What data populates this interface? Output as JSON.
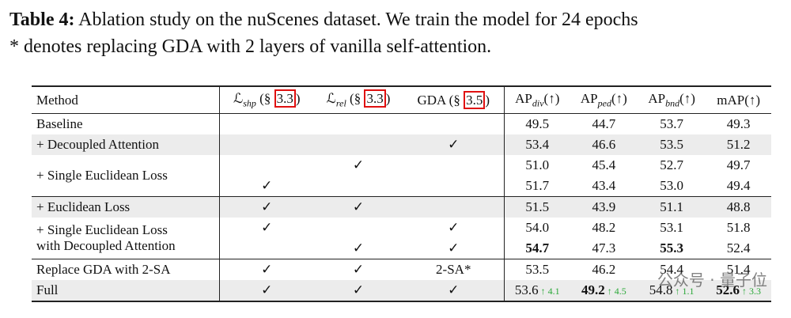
{
  "caption": {
    "label": "Table 4:",
    "lines": [
      "Ablation study on the nuScenes dataset. We train the model for 24 epochs",
      "* denotes replacing GDA with 2 layers of vanilla self-attention."
    ]
  },
  "table": {
    "header": [
      {
        "pre": "Method"
      },
      {
        "pre": "ℒ",
        "sub": "shp",
        "mid": " (§ ",
        "ref": "3.3",
        "post": ")"
      },
      {
        "pre": "ℒ",
        "sub": "rel",
        "mid": " (§ ",
        "ref": "3.3",
        "post": ")"
      },
      {
        "pre": "GDA",
        "mid": " (§ ",
        "ref": "3.5",
        "post": ")"
      },
      {
        "pre": "AP",
        "sub": "div",
        "post": "(↑)"
      },
      {
        "pre": "AP",
        "sub": "ped",
        "post": "(↑)"
      },
      {
        "pre": "AP",
        "sub": "bnd",
        "post": "(↑)"
      },
      {
        "pre": "mAP(↑)"
      }
    ],
    "sections": [
      [
        {
          "method": [
            "Baseline"
          ],
          "entries": [
            {
              "values": [
                "49.5",
                "44.7",
                "53.7",
                "49.3"
              ]
            }
          ]
        },
        {
          "method": [
            "+ Decoupled Attention"
          ],
          "shaded": true,
          "entries": [
            {
              "gda": "✓",
              "values": [
                "53.4",
                "46.6",
                "53.5",
                "51.2"
              ]
            }
          ]
        },
        {
          "method": [
            "+ Single Euclidean Loss"
          ],
          "entries": [
            {
              "rel": "✓",
              "values": [
                "51.0",
                "45.4",
                "52.7",
                "49.7"
              ]
            },
            {
              "shp": "✓",
              "values": [
                "51.7",
                "43.4",
                "53.0",
                "49.4"
              ]
            }
          ]
        }
      ],
      [
        {
          "method": [
            "+ Euclidean Loss"
          ],
          "shaded": true,
          "entries": [
            {
              "shp": "✓",
              "rel": "✓",
              "values": [
                "51.5",
                "43.9",
                "51.1",
                "48.8"
              ]
            }
          ]
        },
        {
          "method": [
            "+ Single Euclidean Loss",
            "with Decoupled Attention"
          ],
          "entries": [
            {
              "shp": "✓",
              "gda": "✓",
              "values": [
                "54.0",
                "48.2",
                "53.1",
                "51.8"
              ]
            },
            {
              "rel": "✓",
              "gda": "✓",
              "values": [
                "54.7",
                "47.3",
                "55.3",
                "52.4"
              ],
              "bold": [
                0,
                2
              ]
            }
          ]
        }
      ],
      [
        {
          "method": [
            "Replace GDA with 2-SA"
          ],
          "entries": [
            {
              "shp": "✓",
              "rel": "✓",
              "gda": "2-SA*",
              "values": [
                "53.5",
                "46.2",
                "54.4",
                "51.4"
              ]
            }
          ]
        },
        {
          "method": [
            "Full"
          ],
          "shaded": true,
          "entries": [
            {
              "shp": "✓",
              "rel": "✓",
              "gda": "✓",
              "values": [
                {
                  "value": "53.6",
                  "gain": "↑ 4.1"
                },
                {
                  "value": "49.2",
                  "gain": "↑ 4.5"
                },
                {
                  "value": "54.8",
                  "gain": "↑ 1.1"
                },
                {
                  "value": "52.6",
                  "gain": "↑ 3.3"
                }
              ],
              "bold": [
                1,
                3
              ]
            }
          ]
        }
      ]
    ]
  },
  "watermark": "公众号 · 量子位"
}
